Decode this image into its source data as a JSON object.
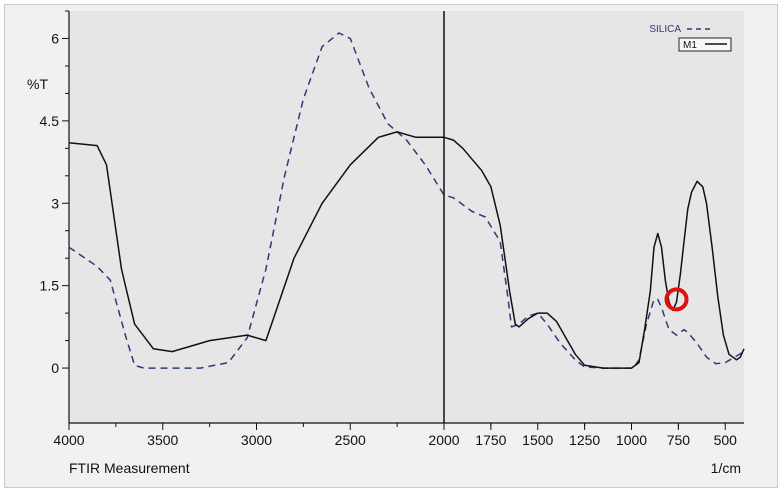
{
  "colors": {
    "plot_bg": "#e6e6e6",
    "frame_bg": "#f1f1f1",
    "axis": "#111111",
    "silica": "#2c3a78",
    "m1": "#111111",
    "marker": "#e01010"
  },
  "chart_data": {
    "type": "line",
    "title": "",
    "xlabel": "FTIR Measurement",
    "xunit": "1/cm",
    "ylabel": "%T",
    "xlim": [
      4000,
      400
    ],
    "ylim": [
      -1.0,
      6.5
    ],
    "x_reversed": true,
    "grid": false,
    "legend_position": "top-right",
    "x_ticks": [
      4000,
      3500,
      3000,
      2500,
      2000,
      1750,
      1500,
      1250,
      1000,
      750,
      500
    ],
    "x_tick_labels": [
      "4000",
      "3500",
      "3000",
      "2500",
      "2000",
      "1750",
      "1500",
      "1250",
      "1000",
      "750",
      "500"
    ],
    "y_ticks": [
      0,
      1.5,
      3,
      4.5,
      6
    ],
    "y_tick_labels": [
      "0",
      "1.5",
      "3",
      "4.5",
      "6"
    ],
    "cursor_x": 2000,
    "annotation": {
      "type": "circle-marker",
      "x": 760,
      "y": 1.25
    },
    "series": [
      {
        "name": "SILICA",
        "style": "dashed",
        "x": [
          4000,
          3850,
          3780,
          3700,
          3650,
          3600,
          3500,
          3300,
          3150,
          3050,
          2950,
          2850,
          2750,
          2650,
          2560,
          2500,
          2400,
          2300,
          2200,
          2100,
          2000,
          1950,
          1850,
          1780,
          1700,
          1660,
          1640,
          1600,
          1550,
          1500,
          1450,
          1380,
          1300,
          1250,
          1150,
          1050,
          990,
          960,
          920,
          880,
          860,
          840,
          800,
          760,
          720,
          700,
          650,
          600,
          550,
          500,
          450,
          400
        ],
        "values": [
          2.2,
          1.85,
          1.6,
          0.6,
          0.05,
          0.0,
          0.0,
          0.0,
          0.1,
          0.55,
          1.8,
          3.5,
          4.9,
          5.85,
          6.1,
          6.0,
          5.1,
          4.45,
          4.15,
          3.7,
          3.15,
          3.1,
          2.85,
          2.75,
          2.3,
          1.3,
          0.75,
          0.8,
          0.95,
          1.0,
          0.8,
          0.45,
          0.15,
          0.02,
          0.0,
          0.0,
          0.0,
          0.15,
          0.8,
          1.25,
          1.25,
          1.1,
          0.7,
          0.6,
          0.7,
          0.65,
          0.45,
          0.2,
          0.08,
          0.1,
          0.2,
          0.3
        ]
      },
      {
        "name": "M1",
        "style": "solid",
        "x": [
          4000,
          3850,
          3800,
          3720,
          3650,
          3550,
          3450,
          3350,
          3250,
          3150,
          3050,
          2950,
          2900,
          2800,
          2650,
          2500,
          2350,
          2250,
          2150,
          2100,
          2000,
          1950,
          1900,
          1850,
          1800,
          1750,
          1700,
          1650,
          1620,
          1600,
          1550,
          1500,
          1450,
          1400,
          1350,
          1300,
          1250,
          1150,
          1050,
          1000,
          960,
          930,
          900,
          880,
          860,
          840,
          820,
          800,
          780,
          760,
          740,
          720,
          700,
          680,
          650,
          620,
          600,
          570,
          540,
          510,
          480,
          440,
          420,
          400
        ],
        "values": [
          4.1,
          4.05,
          3.7,
          1.8,
          0.8,
          0.35,
          0.3,
          0.4,
          0.5,
          0.55,
          0.6,
          0.5,
          1.0,
          2.0,
          3.0,
          3.7,
          4.2,
          4.3,
          4.2,
          4.2,
          4.2,
          4.15,
          4.0,
          3.8,
          3.6,
          3.3,
          2.6,
          1.4,
          0.8,
          0.75,
          0.9,
          1.0,
          1.0,
          0.85,
          0.55,
          0.25,
          0.05,
          0.0,
          0.0,
          0.0,
          0.1,
          0.7,
          1.4,
          2.2,
          2.45,
          2.2,
          1.6,
          1.2,
          1.05,
          1.2,
          1.7,
          2.3,
          2.9,
          3.2,
          3.4,
          3.3,
          3.0,
          2.2,
          1.3,
          0.6,
          0.25,
          0.15,
          0.2,
          0.35
        ]
      }
    ]
  }
}
